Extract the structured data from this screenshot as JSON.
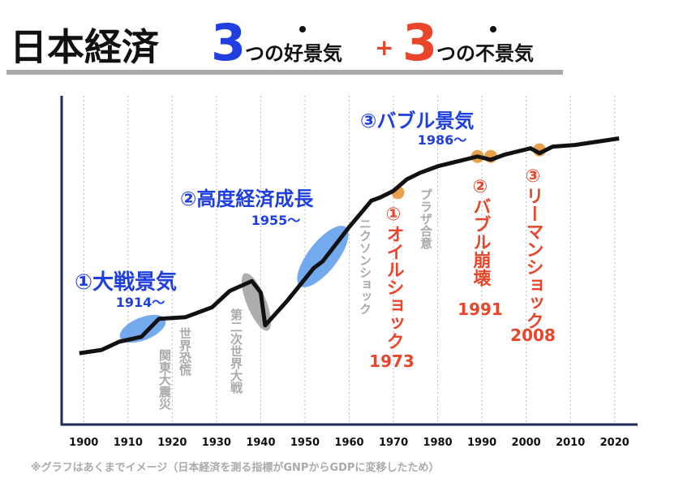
{
  "chart_data": {
    "type": "line",
    "title": {
      "main": "日本経済",
      "good_count": "3",
      "good_text": "つの好景気",
      "plus": "+",
      "bad_count": "3",
      "bad_text": "つの不景気"
    },
    "x": [
      1899,
      1904,
      1908,
      1913,
      1917,
      1923,
      1929,
      1933,
      1938,
      1940,
      1941,
      1946,
      1952,
      1954,
      1960,
      1965,
      1967,
      1970,
      1973,
      1976,
      1980,
      1986,
      1989,
      1992,
      1995,
      2001,
      2003,
      2006,
      2011,
      2021
    ],
    "values": [
      21.5,
      22.5,
      25,
      26.5,
      32,
      32.5,
      35.5,
      40.5,
      43.5,
      40,
      30,
      37.5,
      47.5,
      49.5,
      60,
      68,
      69,
      71,
      74.5,
      76.5,
      78.5,
      80.5,
      81.5,
      80.5,
      82,
      84,
      82.5,
      84.5,
      85,
      87
    ],
    "color": "#111111",
    "markers": {
      "x": [
        1971,
        1989,
        1992,
        2003
      ],
      "values": [
        70.5,
        81.5,
        81.5,
        83.5
      ],
      "color": "#e8a04a"
    },
    "xlim": [
      1895,
      2025
    ],
    "ylim": [
      0,
      100
    ],
    "xticks": [
      1900,
      1910,
      1920,
      1930,
      1940,
      1950,
      1960,
      1970,
      1980,
      1990,
      2000,
      2010,
      2020
    ],
    "grid": true,
    "annotations": [
      "①大戦景気",
      "1914〜",
      "②高度経済成長",
      "1955〜",
      "③バブル景気",
      "1986〜",
      "世界恐慌",
      "関東大震災",
      "第二次世界大戦",
      "ニクソンショック",
      "プラザ合意",
      "①オイルショック",
      "1973",
      "②バブル崩壊",
      "1991",
      "③リーマンショック",
      "2008"
    ],
    "footnote": "※グラフはあくまでイメージ（日本経済を測る指標がGNPからGDPに変移したため）"
  }
}
